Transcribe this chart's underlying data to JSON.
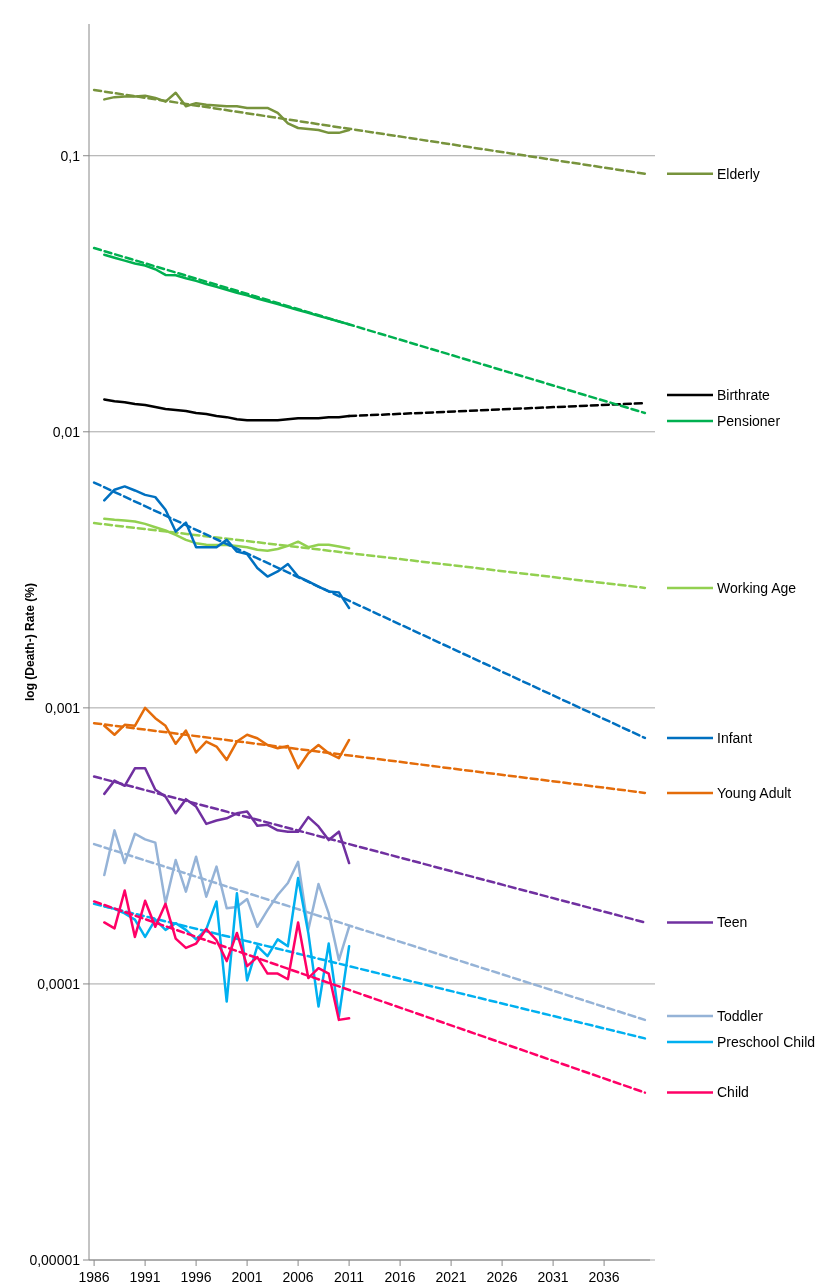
{
  "chart_data": {
    "type": "line",
    "ylabel": "log (Death-) Rate (%)",
    "log": "y",
    "grid": "y",
    "legend": "right",
    "marker": "none",
    "xlim": [
      1985.5,
      2040.5
    ],
    "xticks": [
      1986,
      1991,
      1996,
      2001,
      2006,
      2011,
      2016,
      2021,
      2026,
      2031,
      2036
    ],
    "ylim": [
      1e-05,
      0.3
    ],
    "yticks": [
      {
        "value": 1e-05,
        "label": "0,00001"
      },
      {
        "value": 0.0001,
        "label": "0,0001"
      },
      {
        "value": 0.001,
        "label": "0,001"
      },
      {
        "value": 0.01,
        "label": "0,01"
      },
      {
        "value": 0.1,
        "label": "0,1"
      }
    ],
    "x": [
      1987,
      1988,
      1989,
      1990,
      1991,
      1992,
      1993,
      1994,
      1995,
      1996,
      1997,
      1998,
      1999,
      2000,
      2001,
      2002,
      2003,
      2004,
      2005,
      2006,
      2007,
      2008,
      2009,
      2010,
      2011
    ],
    "series": [
      {
        "name": "Elderly",
        "color": "#77933c",
        "values": [
          0.16,
          0.163,
          0.164,
          0.164,
          0.165,
          0.162,
          0.157,
          0.169,
          0.151,
          0.155,
          0.153,
          0.152,
          0.151,
          0.151,
          0.149,
          0.149,
          0.149,
          0.143,
          0.131,
          0.126,
          0.125,
          0.124,
          0.121,
          0.121,
          0.124
        ]
      },
      {
        "color": "#77933c",
        "line_style": "dashed",
        "x": [
          1986,
          2040
        ],
        "values": [
          0.173,
          0.086
        ]
      },
      {
        "name": "Birthrate",
        "color": "#000000",
        "values": [
          0.0131,
          0.0129,
          0.0128,
          0.0126,
          0.0125,
          0.0123,
          0.0121,
          0.012,
          0.0119,
          0.0117,
          0.0116,
          0.0114,
          0.0113,
          0.0111,
          0.011,
          0.011,
          0.011,
          0.011,
          0.0111,
          0.0112,
          0.0112,
          0.0112,
          0.0113,
          0.0113,
          0.0114
        ]
      },
      {
        "color": "#000000",
        "line_style": "dashed",
        "x": [
          2011,
          2040
        ],
        "values": [
          0.0114,
          0.0127
        ]
      },
      {
        "name": "Pensioner",
        "color": "#00b050",
        "values": [
          0.0438,
          0.0427,
          0.0417,
          0.0407,
          0.04,
          0.0388,
          0.037,
          0.0369,
          0.036,
          0.0352,
          0.0343,
          0.0335,
          0.0327,
          0.0319,
          0.0312,
          0.0304,
          0.0297,
          0.029,
          0.0283,
          0.0276,
          0.027,
          0.0263,
          0.0257,
          0.0251,
          0.0245
        ]
      },
      {
        "color": "#00b050",
        "line_style": "dashed",
        "x": [
          1986,
          2040
        ],
        "values": [
          0.0463,
          0.0117
        ]
      },
      {
        "name": "Working Age",
        "color": "#92d050",
        "values": [
          0.00484,
          0.0048,
          0.00477,
          0.00473,
          0.00464,
          0.00451,
          0.00439,
          0.00423,
          0.00406,
          0.00395,
          0.0039,
          0.00389,
          0.00389,
          0.00386,
          0.00382,
          0.00374,
          0.00371,
          0.00376,
          0.00386,
          0.004,
          0.00382,
          0.0039,
          0.0039,
          0.00384,
          0.00378
        ]
      },
      {
        "color": "#92d050",
        "line_style": "dashed",
        "x": [
          1986,
          2040
        ],
        "values": [
          0.00467,
          0.00272
        ]
      },
      {
        "name": "Infant",
        "color": "#0070c0",
        "values": [
          0.00564,
          0.00617,
          0.00634,
          0.00613,
          0.00591,
          0.0058,
          0.00522,
          0.00435,
          0.00469,
          0.00382,
          0.00382,
          0.00382,
          0.00406,
          0.00368,
          0.00361,
          0.00321,
          0.00299,
          0.00312,
          0.00332,
          0.00299,
          0.00287,
          0.00275,
          0.00264,
          0.00262,
          0.0023
        ]
      },
      {
        "color": "#0070c0",
        "line_style": "dashed",
        "x": [
          1986,
          2040
        ],
        "values": [
          0.00655,
          0.000778
        ]
      },
      {
        "name": "Young Adult",
        "color": "#e46c0a",
        "values": [
          0.000861,
          0.000799,
          0.000868,
          0.000861,
          0.001,
          0.000917,
          0.000861,
          0.000741,
          0.000828,
          0.000689,
          0.000755,
          0.000724,
          0.000648,
          0.000755,
          0.000799,
          0.000776,
          0.000734,
          0.000714,
          0.000728,
          0.000604,
          0.000685,
          0.000734,
          0.000685,
          0.000657,
          0.000765
        ]
      },
      {
        "color": "#e46c0a",
        "line_style": "dashed",
        "x": [
          1986,
          2040
        ],
        "values": [
          0.00088,
          0.000492
        ]
      },
      {
        "name": "Teen",
        "color": "#7030a0",
        "values": [
          0.000488,
          0.000545,
          0.000522,
          0.000604,
          0.000604,
          0.000505,
          0.000477,
          0.000415,
          0.000467,
          0.000439,
          0.00038,
          0.000391,
          0.000398,
          0.000415,
          0.000421,
          0.000374,
          0.000377,
          0.00036,
          0.000356,
          0.000356,
          0.000402,
          0.000372,
          0.000332,
          0.000356,
          0.000274
        ]
      },
      {
        "color": "#7030a0",
        "line_style": "dashed",
        "x": [
          1986,
          2040
        ],
        "values": [
          0.000564,
          0.000167
        ]
      },
      {
        "name": "Toddler",
        "color": "#95b3d7",
        "values": [
          0.000248,
          0.00036,
          0.000274,
          0.00035,
          0.000334,
          0.000325,
          0.000196,
          0.000281,
          0.000216,
          0.000289,
          0.000207,
          0.000266,
          0.000188,
          0.00019,
          0.000203,
          0.000161,
          0.000185,
          0.00021,
          0.000232,
          0.000277,
          0.000157,
          0.00023,
          0.00018,
          0.000122,
          0.000161
        ]
      },
      {
        "color": "#95b3d7",
        "line_style": "dashed",
        "x": [
          1986,
          2040
        ],
        "values": [
          0.000321,
          7.41e-05
        ]
      },
      {
        "name": "Preschool Child",
        "color": "#00b0f0",
        "values": [
          0.000191,
          0.000187,
          0.00018,
          0.000171,
          0.000148,
          0.000171,
          0.000157,
          0.000166,
          0.000157,
          0.000145,
          0.000158,
          0.000199,
          8.63e-05,
          0.000213,
          0.000103,
          0.000137,
          0.000126,
          0.000145,
          0.000137,
          0.000242,
          0.000153,
          8.28e-05,
          0.00014,
          7.62e-05,
          0.000137
        ]
      },
      {
        "color": "#00b0f0",
        "line_style": "dashed",
        "x": [
          1986,
          2040
        ],
        "values": [
          0.000195,
          6.35e-05
        ]
      },
      {
        "name": "Child",
        "color": "#ff0066",
        "values": [
          0.000167,
          0.000159,
          0.000218,
          0.000148,
          0.0002,
          0.000161,
          0.000195,
          0.000146,
          0.000135,
          0.00014,
          0.000158,
          0.000144,
          0.000121,
          0.000153,
          0.000116,
          0.000125,
          0.000109,
          0.000109,
          0.000104,
          0.000167,
          0.000105,
          0.000114,
          0.000109,
          7.41e-05,
          7.51e-05
        ]
      },
      {
        "color": "#ff0066",
        "line_style": "dashed",
        "x": [
          1986,
          2040
        ],
        "values": [
          0.000199,
          4.04e-05
        ]
      }
    ]
  }
}
